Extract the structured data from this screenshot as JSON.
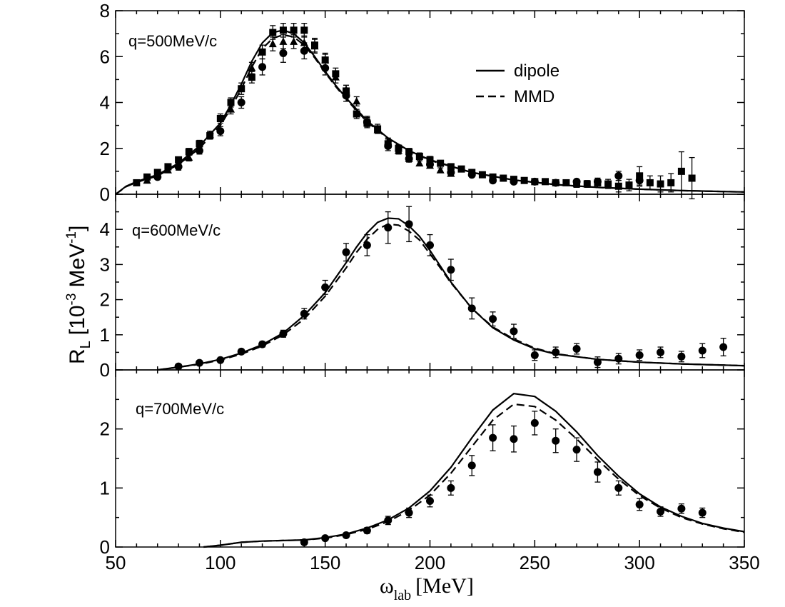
{
  "chart_data": {
    "type": "line",
    "xlabel": "ω",
    "xlabel_sub": "lab",
    "xlabel_units": "[MeV]",
    "ylabel": "R",
    "ylabel_sub": "L",
    "ylabel_units": "[10",
    "ylabel_exp1": "-3",
    "ylabel_units2": "MeV",
    "ylabel_exp2": "-1",
    "ylabel_close": "]",
    "xlim": [
      50,
      350
    ],
    "xticks": [
      "50",
      "100",
      "150",
      "200",
      "250",
      "300",
      "350"
    ],
    "legend": [
      {
        "name": "dipole",
        "style": "solid"
      },
      {
        "name": "MMD",
        "style": "dashed"
      }
    ],
    "panels": [
      {
        "label": "q=500MeV/c",
        "ylim": [
          0,
          8
        ],
        "yticks": [
          "0",
          "2",
          "4",
          "6",
          "8"
        ],
        "series": [
          {
            "name": "dipole",
            "style": "solid",
            "x": [
              50,
              55,
              60,
              70,
              80,
              90,
              100,
              105,
              110,
              115,
              120,
              125,
              130,
              135,
              140,
              145,
              150,
              155,
              160,
              170,
              180,
              190,
              200,
              220,
              240,
              260,
              280,
              300,
              320,
              350
            ],
            "y": [
              0.0,
              0.35,
              0.55,
              0.85,
              1.35,
              2.1,
              3.1,
              3.9,
              4.8,
              5.8,
              6.6,
              7.05,
              7.15,
              7.0,
              6.6,
              6.0,
              5.35,
              4.75,
              4.2,
              3.2,
              2.45,
              1.9,
              1.5,
              0.95,
              0.62,
              0.42,
              0.3,
              0.22,
              0.16,
              0.1
            ]
          },
          {
            "name": "MMD",
            "style": "dashed",
            "x": [
              50,
              55,
              60,
              70,
              80,
              90,
              100,
              105,
              110,
              115,
              120,
              125,
              130,
              135,
              140,
              145,
              150,
              155,
              160,
              170,
              180,
              190,
              200,
              220,
              240,
              260,
              280,
              300,
              320,
              350
            ],
            "y": [
              0.0,
              0.33,
              0.52,
              0.8,
              1.3,
              2.0,
              3.0,
              3.75,
              4.6,
              5.55,
              6.35,
              6.8,
              6.95,
              6.85,
              6.5,
              5.95,
              5.3,
              4.7,
              4.15,
              3.15,
              2.42,
              1.88,
              1.48,
              0.95,
              0.62,
              0.42,
              0.3,
              0.22,
              0.16,
              0.1
            ]
          }
        ],
        "points": [
          {
            "marker": "square",
            "x": [
              60,
              65,
              70,
              75,
              80,
              85,
              90,
              95,
              100,
              105,
              110,
              115,
              120,
              125,
              130,
              135,
              140,
              145,
              150,
              155,
              160,
              165,
              170,
              175,
              180,
              185,
              190,
              195,
              200,
              205,
              210,
              215,
              220,
              225,
              230,
              235,
              240,
              245,
              250,
              255,
              260,
              265,
              270,
              275,
              280,
              285,
              290,
              295,
              300,
              305,
              310,
              315,
              320,
              325
            ],
            "y": [
              0.5,
              0.75,
              0.95,
              1.2,
              1.5,
              1.85,
              2.2,
              2.55,
              3.3,
              4.0,
              4.6,
              5.1,
              6.2,
              7.05,
              7.15,
              7.15,
              7.15,
              6.5,
              5.85,
              5.25,
              4.5,
              3.5,
              3.1,
              2.85,
              2.2,
              2.0,
              1.85,
              1.65,
              1.5,
              1.35,
              1.2,
              1.1,
              0.95,
              0.85,
              0.75,
              0.7,
              0.65,
              0.6,
              0.55,
              0.55,
              0.5,
              0.5,
              0.45,
              0.45,
              0.5,
              0.45,
              0.35,
              0.4,
              0.8,
              0.5,
              0.45,
              0.5,
              1.0,
              0.7
            ],
            "err": [
              0.1,
              0.1,
              0.1,
              0.1,
              0.1,
              0.15,
              0.15,
              0.15,
              0.2,
              0.2,
              0.25,
              0.25,
              0.3,
              0.3,
              0.3,
              0.3,
              0.3,
              0.3,
              0.3,
              0.25,
              0.25,
              0.2,
              0.2,
              0.2,
              0.2,
              0.15,
              0.15,
              0.15,
              0.15,
              0.12,
              0.12,
              0.12,
              0.1,
              0.1,
              0.1,
              0.1,
              0.1,
              0.1,
              0.1,
              0.1,
              0.1,
              0.1,
              0.15,
              0.15,
              0.2,
              0.2,
              0.25,
              0.25,
              0.4,
              0.3,
              0.35,
              0.4,
              0.85,
              0.9
            ]
          },
          {
            "marker": "circle",
            "x": [
              70,
              80,
              90,
              100,
              110,
              120,
              130,
              140,
              150,
              160,
              170,
              180,
              190,
              200,
              210,
              220,
              230,
              240,
              250,
              260,
              270,
              280,
              290,
              300
            ],
            "y": [
              0.75,
              1.2,
              1.9,
              2.75,
              4.0,
              5.55,
              6.15,
              6.25,
              5.5,
              4.3,
              3.15,
              2.1,
              1.55,
              1.3,
              0.95,
              0.85,
              0.6,
              0.55,
              0.55,
              0.5,
              0.55,
              0.55,
              0.8,
              0.6
            ],
            "err": [
              0.1,
              0.15,
              0.15,
              0.2,
              0.25,
              0.35,
              0.4,
              0.35,
              0.3,
              0.25,
              0.2,
              0.2,
              0.15,
              0.12,
              0.1,
              0.1,
              0.1,
              0.1,
              0.1,
              0.1,
              0.1,
              0.15,
              0.2,
              0.25
            ]
          },
          {
            "marker": "triangle",
            "x": [
              65,
              75,
              85,
              95,
              105,
              115,
              125,
              130,
              135,
              140,
              145,
              150,
              155,
              160,
              165,
              170,
              175,
              180,
              185,
              190,
              195,
              200,
              205,
              210
            ],
            "y": [
              0.6,
              1.05,
              1.6,
              2.6,
              3.7,
              5.5,
              6.55,
              6.65,
              6.65,
              6.6,
              6.45,
              5.85,
              5.1,
              4.55,
              4.05,
              3.2,
              2.8,
              2.3,
              1.9,
              1.55,
              1.35,
              1.25,
              1.05,
              0.9
            ],
            "err": [
              0.1,
              0.1,
              0.15,
              0.15,
              0.2,
              0.25,
              0.3,
              0.3,
              0.3,
              0.3,
              0.3,
              0.25,
              0.25,
              0.2,
              0.2,
              0.2,
              0.15,
              0.15,
              0.15,
              0.12,
              0.1,
              0.1,
              0.1,
              0.1
            ]
          }
        ]
      },
      {
        "label": "q=600MeV/c",
        "ylim": [
          0,
          5
        ],
        "yticks": [
          "0",
          "1",
          "2",
          "3",
          "4"
        ],
        "series": [
          {
            "name": "dipole",
            "style": "solid",
            "x": [
              70,
              80,
              90,
              100,
              110,
              120,
              130,
              140,
              150,
              160,
              165,
              170,
              175,
              180,
              185,
              190,
              195,
              200,
              205,
              210,
              220,
              230,
              240,
              250,
              260,
              280,
              300,
              320,
              350
            ],
            "y": [
              0.0,
              0.08,
              0.17,
              0.3,
              0.48,
              0.72,
              1.05,
              1.55,
              2.2,
              3.05,
              3.5,
              3.9,
              4.2,
              4.32,
              4.3,
              4.1,
              3.8,
              3.4,
              2.95,
              2.5,
              1.75,
              1.2,
              0.85,
              0.6,
              0.45,
              0.3,
              0.22,
              0.17,
              0.12
            ]
          },
          {
            "name": "MMD",
            "style": "dashed",
            "x": [
              70,
              80,
              90,
              100,
              110,
              120,
              130,
              140,
              150,
              160,
              165,
              170,
              175,
              180,
              185,
              190,
              195,
              200,
              205,
              210,
              220,
              230,
              240,
              250,
              260,
              280,
              300,
              320,
              350
            ],
            "y": [
              0.0,
              0.08,
              0.16,
              0.28,
              0.45,
              0.68,
              1.0,
              1.45,
              2.1,
              2.9,
              3.35,
              3.72,
              4.0,
              4.15,
              4.12,
              3.95,
              3.7,
              3.3,
              2.9,
              2.48,
              1.75,
              1.22,
              0.88,
              0.62,
              0.46,
              0.3,
              0.22,
              0.17,
              0.12
            ]
          }
        ],
        "points": [
          {
            "marker": "circle",
            "x": [
              80,
              90,
              100,
              110,
              120,
              130,
              140,
              150,
              160,
              170,
              180,
              190,
              200,
              210,
              220,
              230,
              240,
              250,
              260,
              270,
              280,
              290,
              300,
              310,
              320,
              330,
              340
            ],
            "y": [
              0.1,
              0.2,
              0.28,
              0.52,
              0.73,
              1.03,
              1.6,
              2.35,
              3.35,
              3.55,
              4.05,
              4.15,
              3.55,
              2.85,
              1.75,
              1.45,
              1.1,
              0.42,
              0.5,
              0.6,
              0.22,
              0.32,
              0.42,
              0.5,
              0.38,
              0.55,
              0.65
            ],
            "err": [
              0.04,
              0.05,
              0.05,
              0.07,
              0.08,
              0.1,
              0.15,
              0.2,
              0.25,
              0.3,
              0.45,
              0.5,
              0.3,
              0.3,
              0.3,
              0.2,
              0.2,
              0.15,
              0.15,
              0.15,
              0.15,
              0.15,
              0.15,
              0.15,
              0.15,
              0.2,
              0.25
            ]
          }
        ]
      },
      {
        "label": "q=700MeV/c",
        "ylim": [
          0,
          3
        ],
        "yticks": [
          "0",
          "1",
          "2"
        ],
        "series": [
          {
            "name": "dipole",
            "style": "solid",
            "x": [
              92,
              100,
              110,
              120,
              130,
              140,
              150,
              160,
              170,
              180,
              190,
              200,
              210,
              220,
              230,
              240,
              250,
              260,
              270,
              280,
              290,
              300,
              310,
              320,
              330,
              340,
              350
            ],
            "y": [
              0.0,
              0.03,
              0.08,
              0.1,
              0.11,
              0.12,
              0.16,
              0.22,
              0.32,
              0.46,
              0.66,
              0.95,
              1.35,
              1.85,
              2.32,
              2.6,
              2.55,
              2.3,
              1.95,
              1.55,
              1.2,
              0.9,
              0.68,
              0.52,
              0.4,
              0.32,
              0.26
            ]
          },
          {
            "name": "MMD",
            "style": "dashed",
            "x": [
              92,
              100,
              110,
              120,
              130,
              140,
              150,
              160,
              170,
              180,
              190,
              200,
              210,
              220,
              230,
              240,
              250,
              260,
              270,
              280,
              290,
              300,
              310,
              320,
              330,
              340,
              350
            ],
            "y": [
              0.0,
              0.03,
              0.08,
              0.1,
              0.11,
              0.12,
              0.15,
              0.21,
              0.3,
              0.43,
              0.62,
              0.88,
              1.25,
              1.7,
              2.15,
              2.42,
              2.38,
              2.15,
              1.83,
              1.48,
              1.15,
              0.87,
              0.66,
              0.5,
              0.39,
              0.31,
              0.25
            ]
          }
        ],
        "points": [
          {
            "marker": "circle",
            "x": [
              140,
              150,
              160,
              170,
              180,
              190,
              200,
              210,
              220,
              230,
              240,
              250,
              260,
              270,
              280,
              290,
              300,
              310,
              320,
              330
            ],
            "y": [
              0.08,
              0.15,
              0.2,
              0.28,
              0.45,
              0.58,
              0.78,
              1.0,
              1.38,
              1.85,
              1.83,
              2.1,
              1.8,
              1.65,
              1.27,
              1.0,
              0.72,
              0.6,
              0.65,
              0.58
            ],
            "err": [
              0.03,
              0.03,
              0.04,
              0.05,
              0.07,
              0.08,
              0.1,
              0.12,
              0.17,
              0.22,
              0.22,
              0.2,
              0.2,
              0.2,
              0.17,
              0.12,
              0.1,
              0.08,
              0.08,
              0.08
            ]
          }
        ]
      }
    ]
  }
}
